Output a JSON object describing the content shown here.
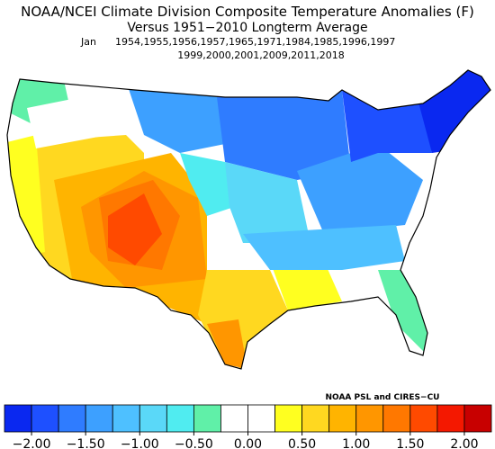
{
  "title": "NOAA/NCEI Climate Division Composite Temperature Anomalies (F)",
  "subtitle": "Versus 1951−2010 Longterm Average",
  "month": "Jan",
  "years_line1": "1954,1955,1956,1957,1965,1971,1984,1985,1996,1997",
  "years_line2": "1999,2000,2001,2009,2011,2018",
  "credit": "NOAA PSL and CIRES−CU",
  "colorbar": {
    "bounds": [
      -2.25,
      -2,
      -1.75,
      -1.5,
      -1.25,
      -1,
      -0.75,
      -0.5,
      -0.25,
      0,
      0.25,
      0.5,
      0.75,
      1,
      1.25,
      1.5,
      1.75,
      2,
      2.25
    ],
    "colors": [
      "#0a28f0",
      "#1e50ff",
      "#2f7cff",
      "#3da0ff",
      "#4ec0ff",
      "#5ad8f8",
      "#50ecf0",
      "#60f0a8",
      "#ffffff",
      "#ffffff",
      "#ffff20",
      "#ffd820",
      "#ffb400",
      "#ff9600",
      "#ff7800",
      "#ff4a00",
      "#f41800",
      "#c80000"
    ],
    "ticks": [
      {
        "value": -2,
        "label": "−2.00"
      },
      {
        "value": -1.5,
        "label": "−1.50"
      },
      {
        "value": -1,
        "label": "−1.00"
      },
      {
        "value": -0.5,
        "label": "−0.50"
      },
      {
        "value": 0,
        "label": "0.00"
      },
      {
        "value": 0.5,
        "label": "0.50"
      },
      {
        "value": 1,
        "label": "1.00"
      },
      {
        "value": 1.5,
        "label": "1.50"
      },
      {
        "value": 2,
        "label": "2.00"
      }
    ]
  }
}
